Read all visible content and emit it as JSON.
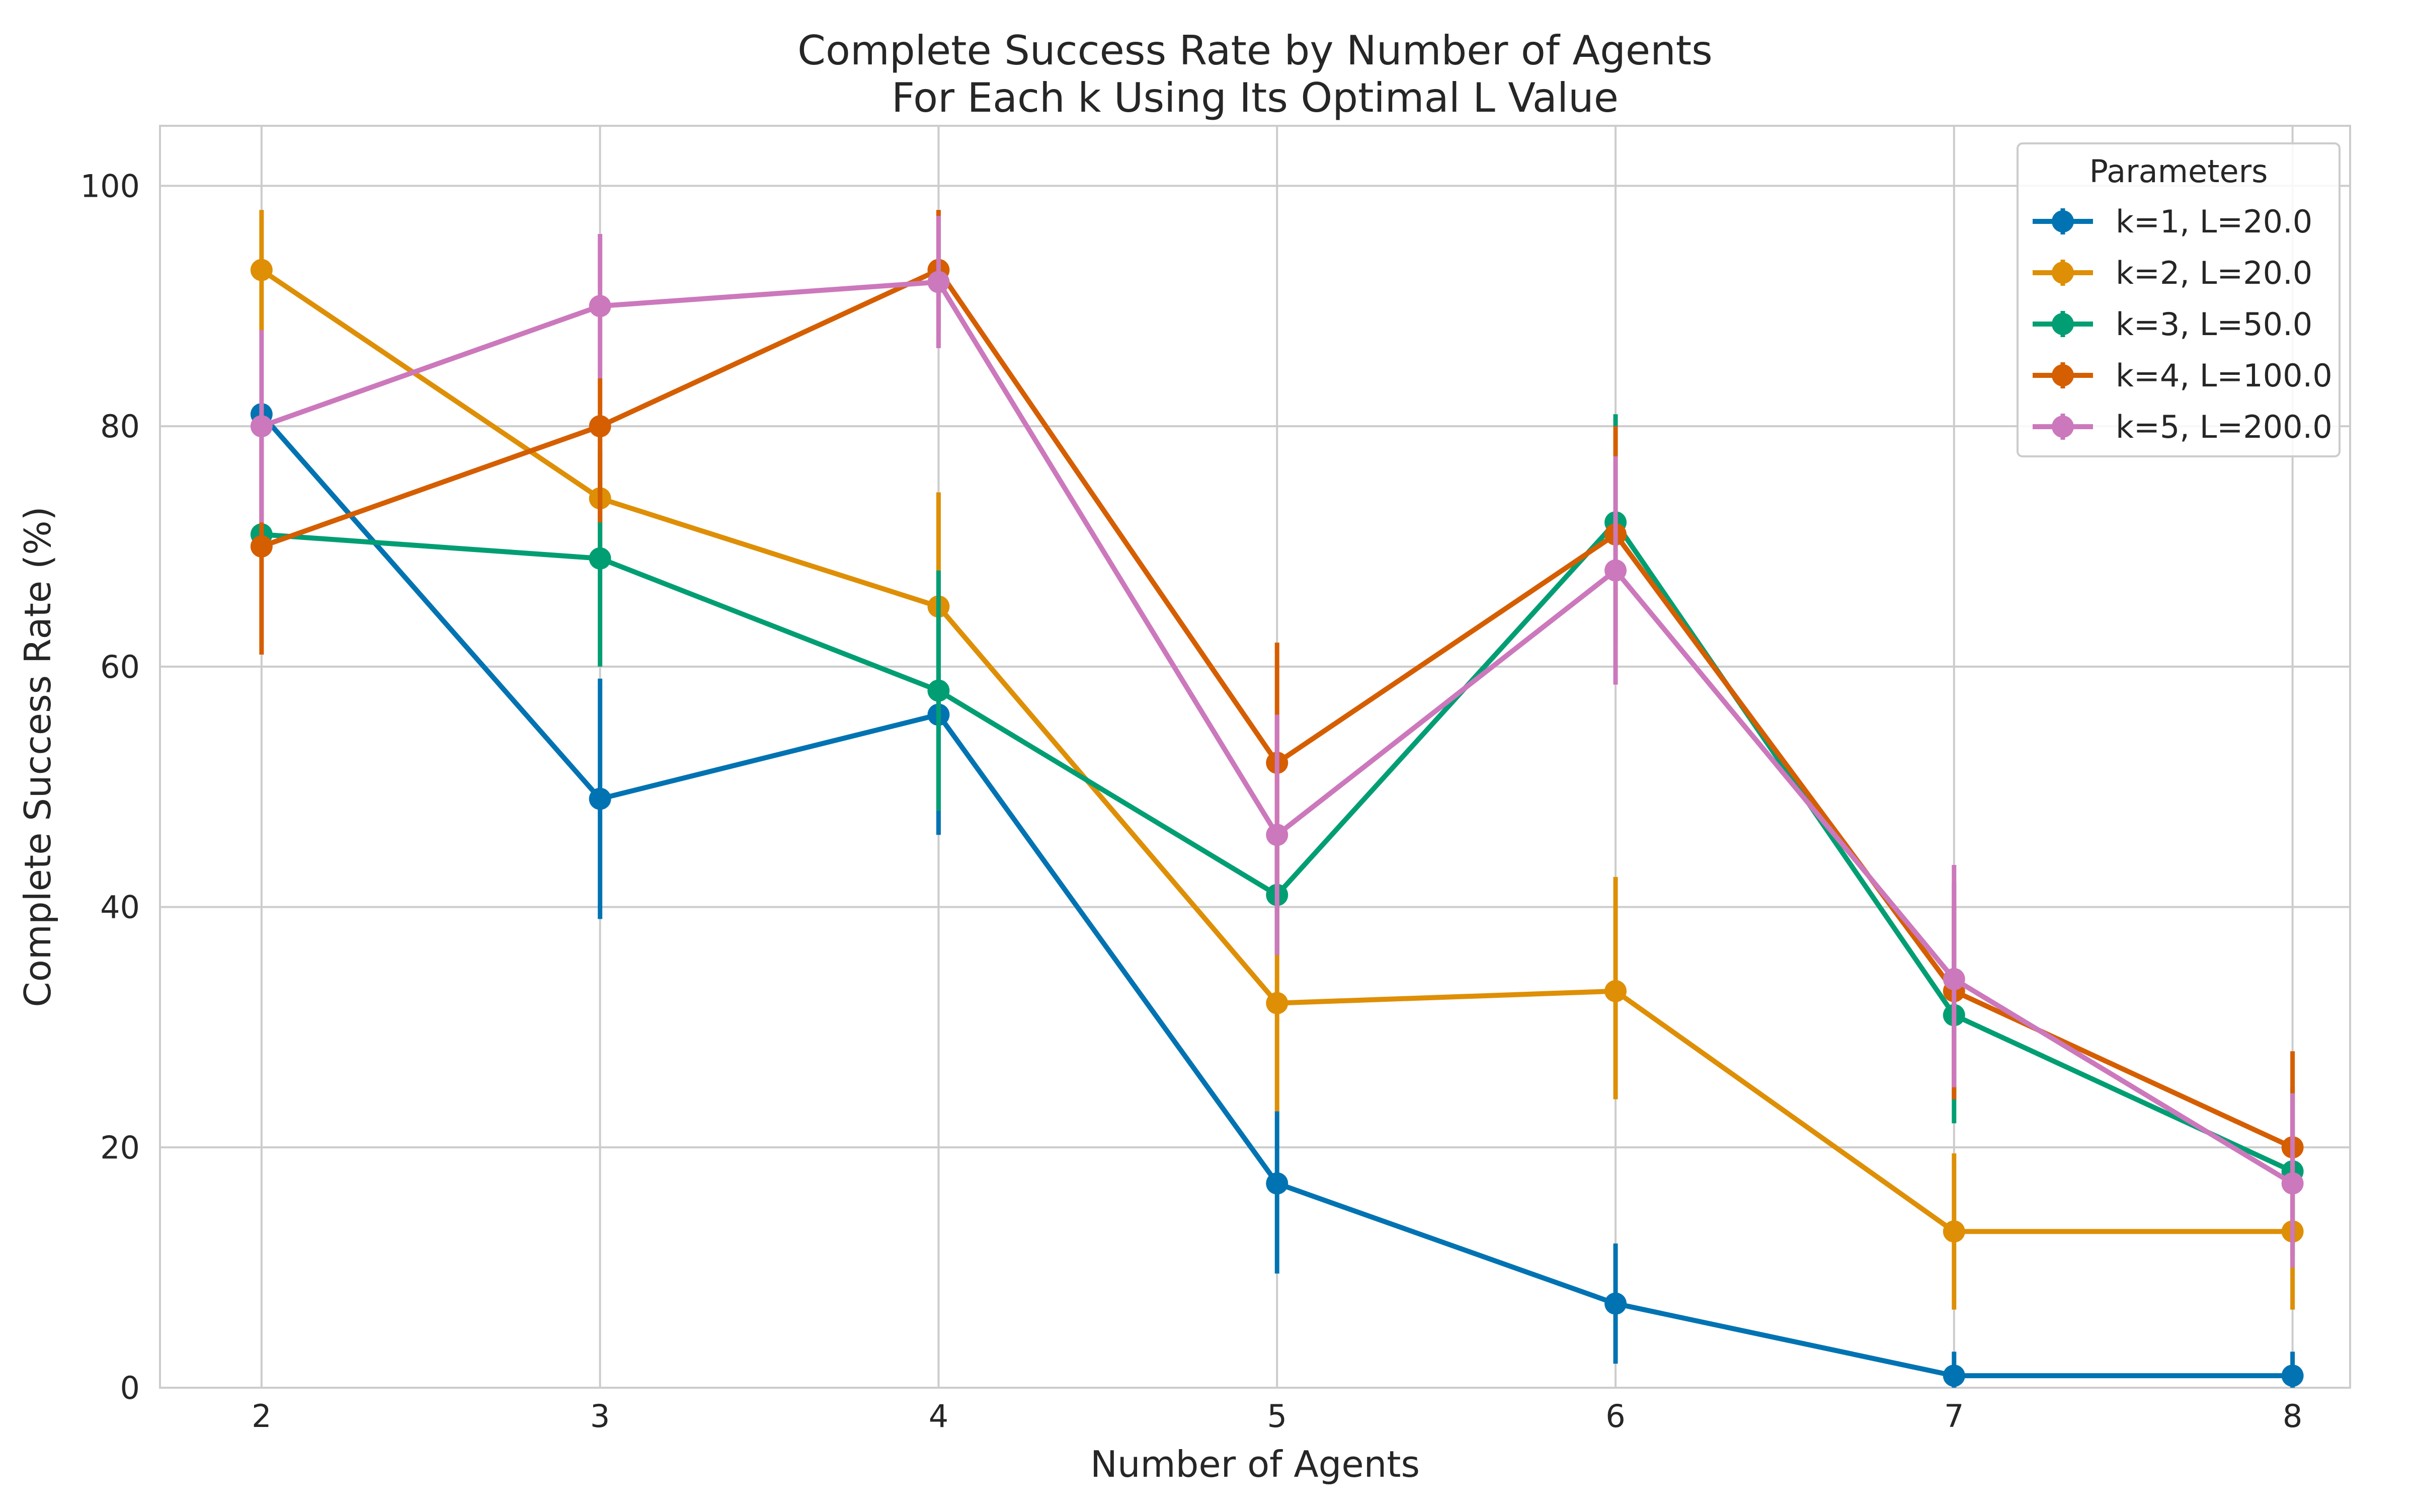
{
  "chart_data": {
    "type": "line",
    "title": "Complete Success Rate by Number of Agents",
    "subtitle": "For Each k Using Its Optimal L Value",
    "xlabel": "Number of Agents",
    "ylabel": "Complete Success Rate (%)",
    "x": [
      2,
      3,
      4,
      5,
      6,
      7,
      8
    ],
    "x_tick_labels": [
      "2",
      "3",
      "4",
      "5",
      "6",
      "7",
      "8"
    ],
    "y_ticks": [
      0,
      20,
      40,
      60,
      80,
      100
    ],
    "y_tick_labels": [
      "0",
      "20",
      "40",
      "60",
      "80",
      "100"
    ],
    "xlim": [
      1.7,
      8.17
    ],
    "ylim": [
      0,
      105
    ],
    "grid": true,
    "legend": {
      "title": "Parameters",
      "position": "top-right"
    },
    "series": [
      {
        "name": "k=1, L=20.0",
        "color": "#0173b2",
        "values": [
          81,
          49,
          56,
          17,
          7,
          1,
          1
        ],
        "err_low": [
          81,
          39,
          46,
          9.5,
          2,
          0,
          0
        ],
        "err_high": [
          81,
          59,
          66,
          23,
          12,
          3,
          3
        ]
      },
      {
        "name": "k=2, L=20.0",
        "color": "#de8f05",
        "values": [
          93,
          74,
          65,
          32,
          33,
          13,
          13
        ],
        "err_low": [
          88,
          69,
          56,
          23,
          24,
          6.5,
          6.5
        ],
        "err_high": [
          98,
          79,
          74.5,
          41,
          42.5,
          19.5,
          19.5
        ]
      },
      {
        "name": "k=3, L=50.0",
        "color": "#029e73",
        "values": [
          71,
          69,
          58,
          41,
          72,
          31,
          18
        ],
        "err_low": [
          71,
          60,
          48,
          36,
          63,
          22,
          11
        ],
        "err_high": [
          71,
          78,
          68,
          46,
          81,
          40,
          25
        ]
      },
      {
        "name": "k=4, L=100.0",
        "color": "#d55e00",
        "values": [
          70,
          80,
          93,
          52,
          71,
          33,
          20
        ],
        "err_low": [
          61,
          72,
          88,
          42,
          62,
          24,
          12
        ],
        "err_high": [
          79,
          84,
          98,
          62,
          80,
          42,
          28
        ]
      },
      {
        "name": "k=5, L=200.0",
        "color": "#cc78bc",
        "values": [
          80,
          90,
          92,
          46,
          68,
          34,
          17
        ],
        "err_low": [
          72,
          84,
          86.5,
          36,
          58.5,
          25,
          10
        ],
        "err_high": [
          88,
          96,
          97.5,
          56,
          77.5,
          43.5,
          24.5
        ]
      }
    ]
  }
}
